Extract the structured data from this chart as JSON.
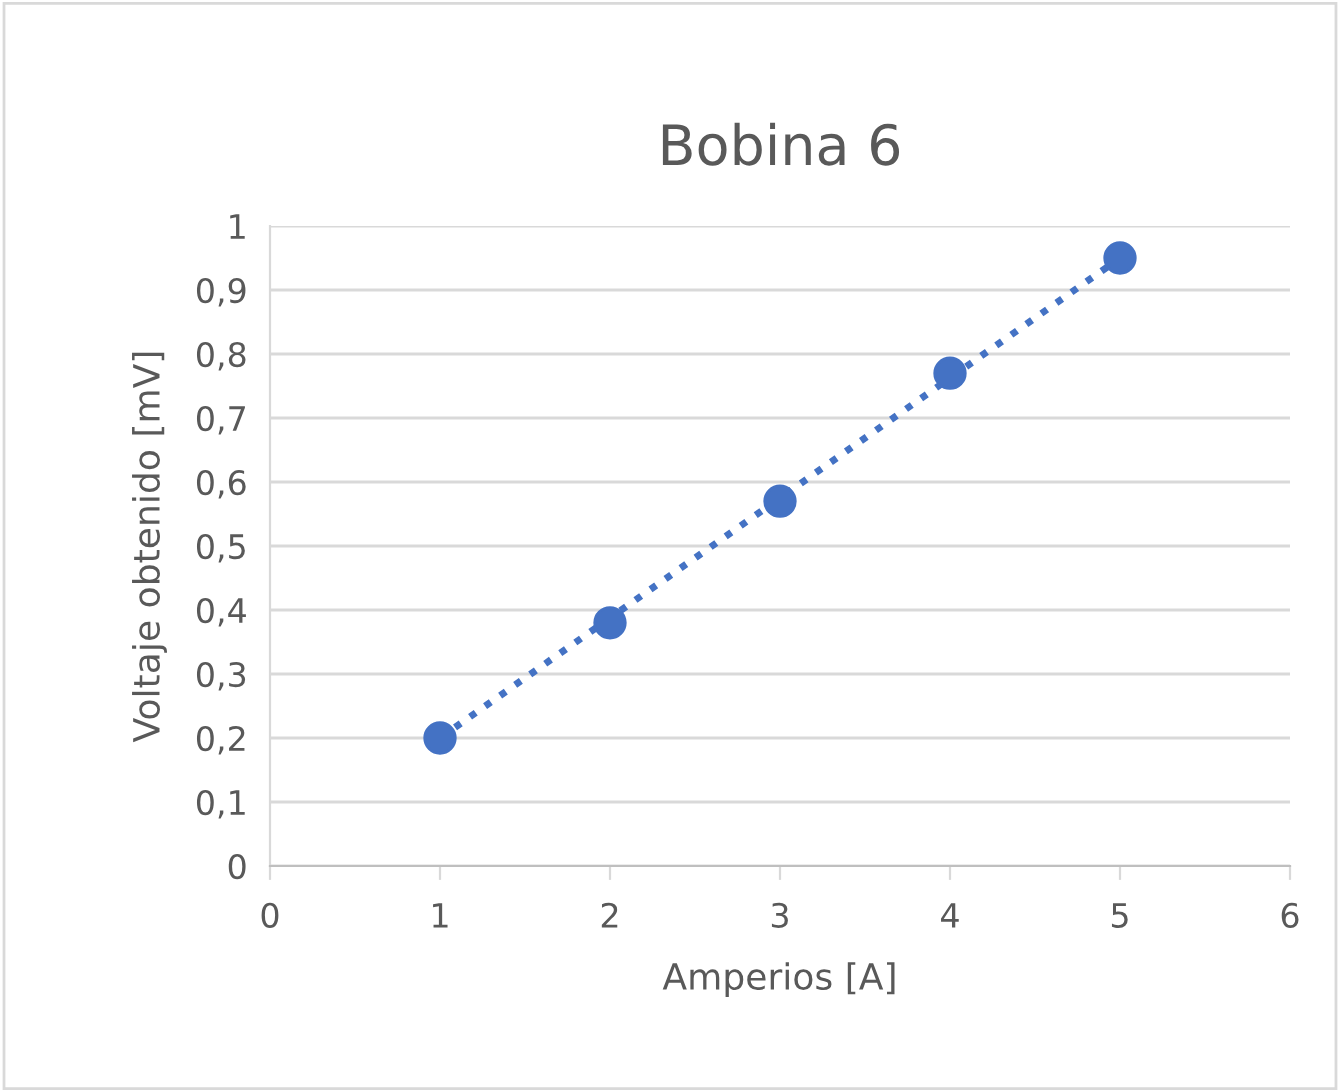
{
  "chart_data": {
    "type": "scatter",
    "title": "Bobina 6",
    "xlabel": "Amperios [A]",
    "ylabel": "Voltaje obtenido [mV]",
    "x": [
      1,
      2,
      3,
      4,
      5
    ],
    "series": [
      {
        "color": "#4472c4",
        "marker": "circle",
        "values": [
          0.2,
          0.38,
          0.57,
          0.77,
          0.95
        ]
      },
      {
        "type": "line",
        "color": "#4472c4",
        "line_style": "dotted",
        "marker": "none",
        "x": [
          1,
          5
        ],
        "values": [
          0.2,
          0.95
        ]
      }
    ],
    "xlim": [
      0,
      6
    ],
    "xticks": [
      0,
      1,
      2,
      3,
      4,
      5,
      6
    ],
    "ylim": [
      0,
      1
    ],
    "yticks": [
      0,
      {
        "value": 0.1,
        "label": "0,1"
      },
      {
        "value": 0.2,
        "label": "0,2"
      },
      {
        "value": 0.3,
        "label": "0,3"
      },
      {
        "value": 0.4,
        "label": "0,4"
      },
      {
        "value": 0.5,
        "label": "0,5"
      },
      {
        "value": 0.6,
        "label": "0,6"
      },
      {
        "value": 0.7,
        "label": "0,7"
      },
      {
        "value": 0.8,
        "label": "0,8"
      },
      {
        "value": 0.9,
        "label": "0,9"
      },
      1
    ],
    "grid": "y",
    "legend": false
  }
}
